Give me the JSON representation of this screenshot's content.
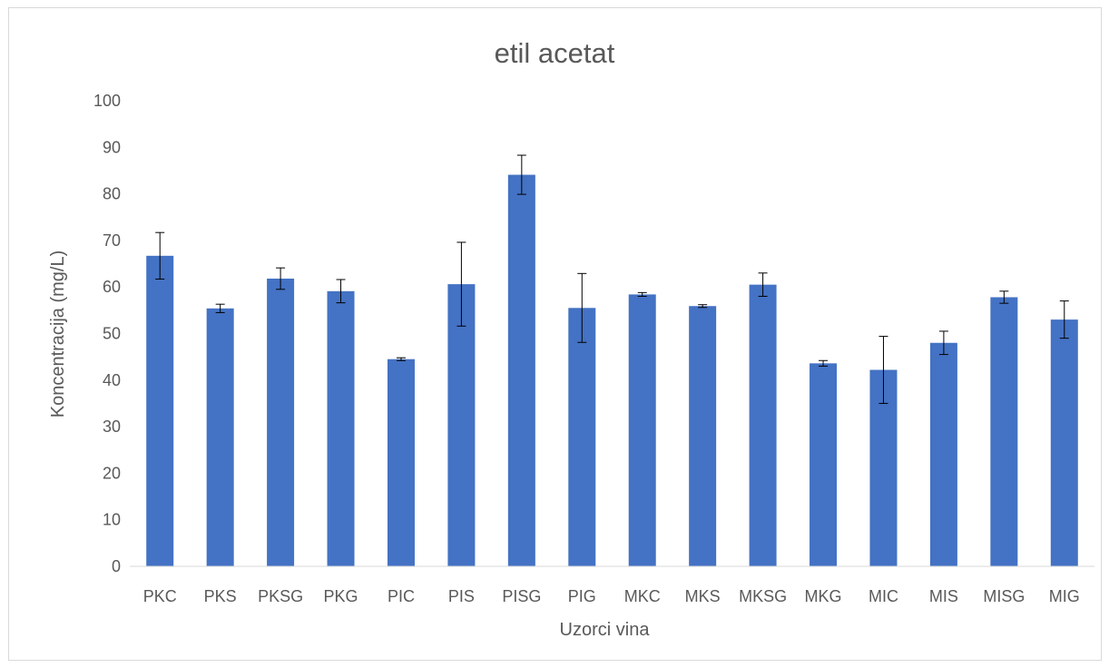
{
  "chart_data": {
    "type": "bar",
    "title": "etil acetat",
    "xlabel": "Uzorci vina",
    "ylabel": "Koncentracija (mg/L)",
    "ylim": [
      0,
      100
    ],
    "yticks": [
      0,
      10,
      20,
      30,
      40,
      50,
      60,
      70,
      80,
      90,
      100
    ],
    "grid": false,
    "legend": "none",
    "categories": [
      "PKC",
      "PKS",
      "PKSG",
      "PKG",
      "PIC",
      "PIS",
      "PISG",
      "PIG",
      "MKC",
      "MKS",
      "MKSG",
      "MKG",
      "MIC",
      "MIS",
      "MISG",
      "MIG"
    ],
    "series": [
      {
        "values": [
          66.7,
          55.4,
          61.8,
          59.1,
          44.5,
          60.6,
          84.1,
          55.5,
          58.4,
          55.9,
          60.5,
          43.6,
          42.2,
          48.0,
          57.8,
          53.0
        ],
        "error": [
          5.0,
          0.9,
          2.3,
          2.5,
          0.3,
          9.0,
          4.2,
          7.4,
          0.4,
          0.3,
          2.5,
          0.6,
          7.2,
          2.5,
          1.3,
          4.0
        ],
        "color": "#4472c4"
      }
    ]
  }
}
